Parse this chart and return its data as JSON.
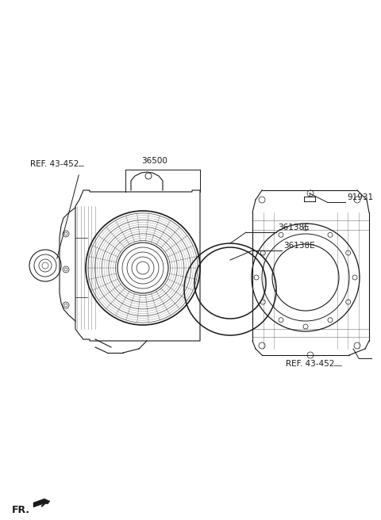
{
  "bg_color": "#ffffff",
  "line_color": "#1a1a1a",
  "labels": {
    "ref_452_left": "REF. 43-452",
    "36500": "36500",
    "36138E_top": "36138E",
    "36138E_bot": "36138E",
    "91931": "91931",
    "ref_452_right": "REF. 43-452",
    "fr_label": "FR."
  },
  "fig_width": 4.8,
  "fig_height": 6.56,
  "dpi": 100
}
